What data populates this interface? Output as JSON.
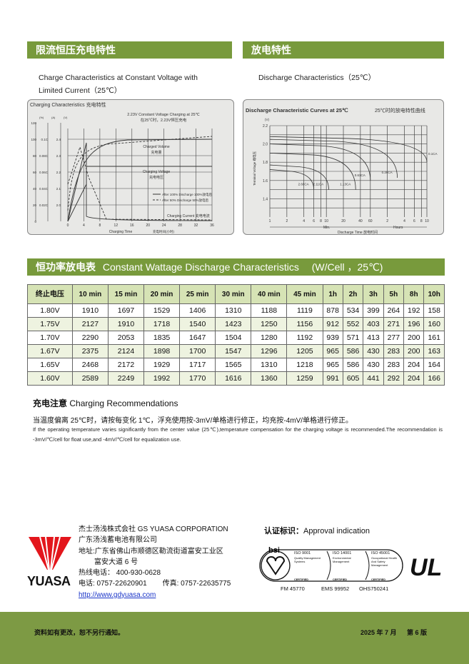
{
  "sections": {
    "charging_title": "限流恒压充电特性",
    "discharge_title": "放电特性",
    "cw_title": "恒功率放电表",
    "cw_title_en": "Constant Wattage Discharge Characteristics",
    "cw_unit": "(W/Cell ，25℃)"
  },
  "charging_caption": [
    "Charge Characteristics at Constant Voltage with",
    "Limited Current（25℃）"
  ],
  "discharge_caption": "Discharge Characteristics（25℃）",
  "charging_chart": {
    "title": "Charging Characteristics  充电特性",
    "subtitle": "2.23V Constant Voltage Charging at 25℃",
    "subtitle_cn": "在25℃时，2.23V恒压充电",
    "axis_units": [
      "(%)",
      "(A)",
      "(V)"
    ],
    "pct_ticks": [
      "120",
      "100",
      "80",
      "60",
      "40",
      "20",
      "0"
    ],
    "amp_ticks": [
      "0.1C",
      "0.08C",
      "0.06C",
      "0.04C",
      "0.02C"
    ],
    "volt_ticks": [
      "2.4",
      "2.3",
      "2.2",
      "2.1",
      "2.0"
    ],
    "x_ticks": [
      "0",
      "4",
      "8",
      "12",
      "16",
      "20",
      "24",
      "28",
      "32",
      "36"
    ],
    "xlabel": "Charging Time",
    "xlabel_cn": "充电时间(小时)",
    "labels": {
      "volume": "Charged Volume",
      "volume_cn": "充电量",
      "voltage": "Charging Voltage",
      "voltage_cn": "充电电压",
      "current": "Charging Current  充电电流"
    },
    "legend": [
      "After 100% Discharge 100%放电后",
      "After 50% Discharge 50%放电后"
    ]
  },
  "discharge_chart": {
    "title": "Discharge Characteristic Curves at 25℃",
    "title_cn": "25℃时的放电特性曲线",
    "y_unit": "(V)",
    "y_ticks": [
      "2.2",
      "2.0",
      "1.8",
      "1.6",
      "1.4"
    ],
    "ylabel": "Terminal Voltage 端电压",
    "x_ticks": [
      "1",
      "2",
      "4",
      "6",
      "8",
      "10",
      "20",
      "40",
      "60",
      "2",
      "4",
      "6",
      "8",
      "10"
    ],
    "min_label": "Min.",
    "hours_label": "Hours",
    "xlabel": "Discharge Time 放电时间",
    "curves": [
      "2.68CA",
      "2.11CA",
      "1.13CA",
      "0.61CA",
      "0.28CA",
      "0.1CA"
    ]
  },
  "table": {
    "headers": [
      "终止电压",
      "10 min",
      "15 min",
      "20 min",
      "25 min",
      "30 min",
      "40 min",
      "45 min",
      "1h",
      "2h",
      "3h",
      "5h",
      "8h",
      "10h"
    ],
    "rows": [
      [
        "1.80V",
        "1910",
        "1697",
        "1529",
        "1406",
        "1310",
        "1188",
        "1119",
        "878",
        "534",
        "399",
        "264",
        "192",
        "158"
      ],
      [
        "1.75V",
        "2127",
        "1910",
        "1718",
        "1540",
        "1423",
        "1250",
        "1156",
        "912",
        "552",
        "403",
        "271",
        "196",
        "160"
      ],
      [
        "1.70V",
        "2290",
        "2053",
        "1835",
        "1647",
        "1504",
        "1280",
        "1192",
        "939",
        "571",
        "413",
        "277",
        "200",
        "161"
      ],
      [
        "1.67V",
        "2375",
        "2124",
        "1898",
        "1700",
        "1547",
        "1296",
        "1205",
        "965",
        "586",
        "430",
        "283",
        "200",
        "163"
      ],
      [
        "1.65V",
        "2468",
        "2172",
        "1929",
        "1717",
        "1565",
        "1310",
        "1218",
        "965",
        "586",
        "430",
        "283",
        "204",
        "164"
      ],
      [
        "1.60V",
        "2589",
        "2249",
        "1992",
        "1770",
        "1616",
        "1360",
        "1259",
        "991",
        "605",
        "441",
        "292",
        "204",
        "166"
      ]
    ]
  },
  "recommend": {
    "title_cn": "充电注意",
    "title_en": "Charging Recommendations",
    "cn": "当温度偏离 25℃时，请按每变化 1℃，浮充使用按-3mV/单格进行修正，均充按-4mV/单格进行修正。",
    "en": "If the operating temperature varies significantly from the center value (25℃),temperature compensation for the charging voltage is recommended.The recommendation is -3mV/℃/cell for float use,and -4mV/℃/cell for equalization use."
  },
  "company": {
    "logo": "YUASA",
    "line1": "杰士汤浅株式会社  GS YUASA CORPORATION",
    "line2": "广东汤浅蓄电池有限公司",
    "line3": "地址:广东省佛山市顺德区勒流街道富安工业区",
    "line4": "富安大道 6 号",
    "hotline": "热线电话：  400-930-0628",
    "phone": "电话: 0757-22620901",
    "fax": "传真: 0757-22635775",
    "url": "http://www.gdyuasa.com"
  },
  "approval": {
    "title": "认证标识：",
    "title_en": "Approval indication",
    "bsi": "bsi",
    "certs": [
      {
        "name": "ISO 9001",
        "desc": "Quality Management Systems",
        "status": "CERTIFIED",
        "code": "FM 45770"
      },
      {
        "name": "ISO 14001",
        "desc": "Environmental Management",
        "status": "CERTIFIED",
        "code": "EMS 99952"
      },
      {
        "name": "ISO 45001",
        "desc": "Occupational Health And Safety Management",
        "status": "CERTIFIED",
        "code": "OHS750241"
      }
    ],
    "ul": "UL"
  },
  "footer": {
    "notice": "资料如有更改，恕不另行通知。",
    "date": "2025 年 7 月",
    "edition": "第 6 版"
  },
  "colors": {
    "header_green": "#789a3c",
    "table_header": "#d6e3b5",
    "footer_green": "#7d9a44",
    "logo_red": "#e3161c"
  }
}
